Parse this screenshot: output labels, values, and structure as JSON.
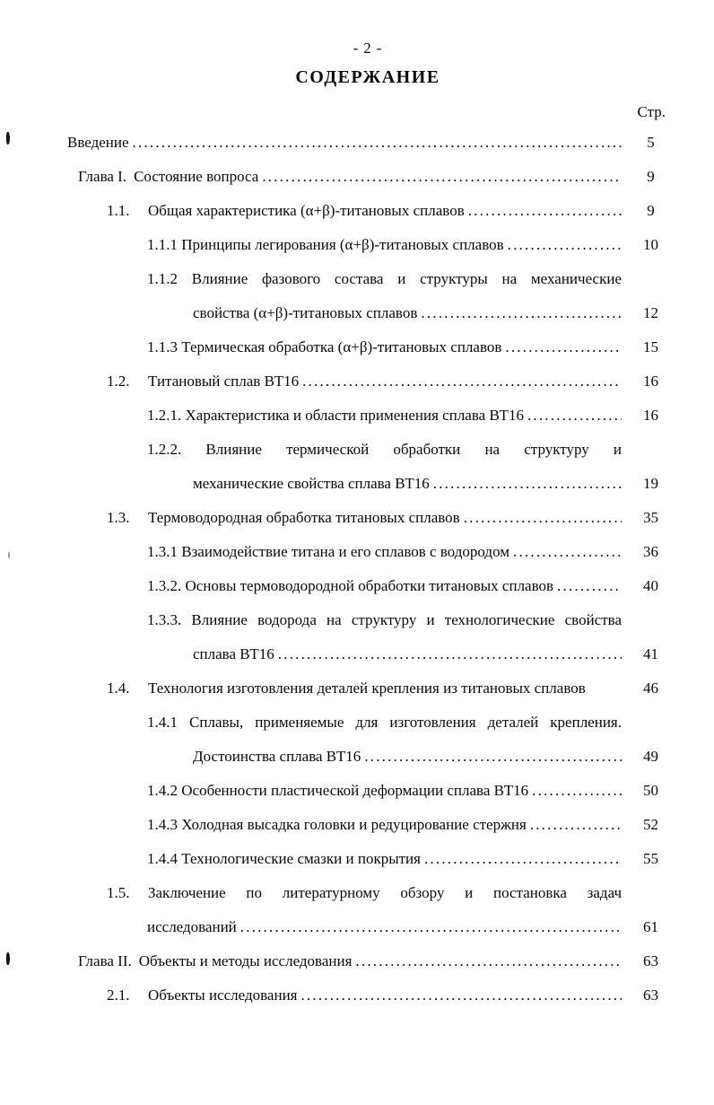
{
  "page": {
    "page_number_label": "- 2 -",
    "title": "СОДЕРЖАНИЕ",
    "column_header": "Стр."
  },
  "toc": {
    "leader_char": ".",
    "rows": [
      {
        "level": "intro",
        "num": "",
        "text": "Введение",
        "dots": true,
        "justify": false,
        "page": "5"
      },
      {
        "level": "chapter",
        "num": "Глава I.",
        "text": "Состояние вопроса",
        "dots": true,
        "justify": false,
        "page": "9"
      },
      {
        "level": "section",
        "num": "1.1.",
        "text": "Общая характеристика (α+β)-титановых сплавов",
        "dots": true,
        "justify": false,
        "page": "9"
      },
      {
        "level": "sub",
        "num": "",
        "text": "1.1.1 Принципы легирования (α+β)-титановых сплавов",
        "dots": true,
        "justify": false,
        "page": "10"
      },
      {
        "level": "sub",
        "num": "",
        "text": "1.1.2 Влияние фазового состава и структуры на механические",
        "dots": false,
        "justify": true,
        "page": ""
      },
      {
        "level": "subwrap",
        "num": "",
        "text": "свойства (α+β)-титановых сплавов",
        "dots": true,
        "justify": false,
        "page": "12"
      },
      {
        "level": "sub",
        "num": "",
        "text": "1.1.3 Термическая обработка (α+β)-титановых сплавов",
        "dots": true,
        "justify": false,
        "page": "15"
      },
      {
        "level": "section",
        "num": "1.2.",
        "text": "Титановый сплав ВТ16",
        "dots": true,
        "justify": false,
        "page": "16"
      },
      {
        "level": "sub",
        "num": "",
        "text": "1.2.1. Характеристика и области применения сплава ВТ16",
        "dots": true,
        "justify": false,
        "page": "16"
      },
      {
        "level": "sub",
        "num": "",
        "text": "1.2.2. Влияние термической обработки на структуру и",
        "dots": false,
        "justify": true,
        "page": ""
      },
      {
        "level": "subwrap",
        "num": "",
        "text": "механические свойства сплава ВТ16",
        "dots": true,
        "justify": false,
        "page": "19"
      },
      {
        "level": "section",
        "num": "1.3.",
        "text": "Термоводородная обработка титановых сплавов",
        "dots": true,
        "justify": false,
        "page": "35"
      },
      {
        "level": "sub",
        "num": "",
        "text": "1.3.1 Взаимодействие титана и его сплавов с водородом",
        "dots": true,
        "justify": false,
        "page": "36"
      },
      {
        "level": "sub",
        "num": "",
        "text": "1.3.2. Основы термоводородной обработки титановых сплавов",
        "dots": true,
        "justify": false,
        "page": "40"
      },
      {
        "level": "sub",
        "num": "",
        "text": "1.3.3. Влияние водорода на структуру и технологические свойства",
        "dots": false,
        "justify": true,
        "page": ""
      },
      {
        "level": "subwrap",
        "num": "",
        "text": "сплава ВТ16",
        "dots": true,
        "justify": false,
        "page": "41"
      },
      {
        "level": "section",
        "num": "1.4.",
        "text": "Технология изготовления деталей крепления из титановых сплавов",
        "dots": false,
        "justify": false,
        "page": "46"
      },
      {
        "level": "sub",
        "num": "",
        "text": "1.4.1 Сплавы, применяемые для изготовления деталей крепления.",
        "dots": false,
        "justify": true,
        "page": ""
      },
      {
        "level": "subwrap",
        "num": "",
        "text": "Достоинства сплава ВТ16",
        "dots": true,
        "justify": false,
        "page": "49"
      },
      {
        "level": "sub",
        "num": "",
        "text": "1.4.2 Особенности пластической деформации сплава ВТ16",
        "dots": true,
        "justify": false,
        "page": "50"
      },
      {
        "level": "sub",
        "num": "",
        "text": "1.4.3 Холодная высадка головки и редуцирование стержня",
        "dots": true,
        "justify": false,
        "page": "52"
      },
      {
        "level": "sub",
        "num": "",
        "text": "1.4.4 Технологические смазки и покрытия",
        "dots": true,
        "justify": false,
        "page": "55"
      },
      {
        "level": "section",
        "num": "1.5.",
        "text": "Заключение по литературному обзору и постановка задач",
        "dots": false,
        "justify": true,
        "page": ""
      },
      {
        "level": "secwrap",
        "num": "",
        "text": "исследований",
        "dots": true,
        "justify": false,
        "page": "61"
      },
      {
        "level": "chapter",
        "num": "Глава II.",
        "text": "Объекты и методы исследования",
        "dots": true,
        "justify": false,
        "page": "63"
      },
      {
        "level": "section",
        "num": "2.1.",
        "text": "Объекты исследования",
        "dots": true,
        "justify": false,
        "page": "63"
      }
    ]
  }
}
